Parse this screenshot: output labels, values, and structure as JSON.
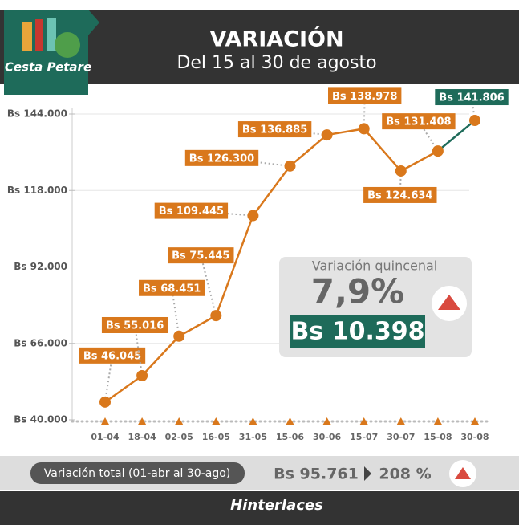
{
  "header": {
    "logo": "Cesta Petare",
    "title": "VARIACIÓN",
    "subtitle": "Del 15 al 30 de agosto"
  },
  "chart_data": {
    "type": "line",
    "categories": [
      "01-04",
      "18-04",
      "02-05",
      "16-05",
      "31-05",
      "15-06",
      "30-06",
      "15-07",
      "30-07",
      "15-08",
      "30-08"
    ],
    "series": [
      {
        "name": "Cesta Petare",
        "color": "#d9781c",
        "highlight_color": "#1e6b5a",
        "values": [
          46045,
          55016,
          68451,
          75445,
          109445,
          126300,
          136885,
          138978,
          124634,
          131408,
          141806
        ],
        "value_labels": [
          "Bs 46.045",
          "Bs 55.016",
          "Bs 68.451",
          "Bs 75.445",
          "Bs 109.445",
          "Bs 126.300",
          "Bs 136.885",
          "Bs 138.978",
          "Bs 124.634",
          "Bs 131.408",
          "Bs 141.806"
        ]
      }
    ],
    "ylim": [
      40000,
      144000
    ],
    "yticks": [
      {
        "value": 40000,
        "label": "Bs 40.000"
      },
      {
        "value": 66000,
        "label": "Bs 66.000"
      },
      {
        "value": 92000,
        "label": "Bs 92.000"
      },
      {
        "value": 118000,
        "label": "Bs 118.000"
      },
      {
        "value": 144000,
        "label": "Bs 144.000"
      }
    ],
    "grid": true
  },
  "summary": {
    "label": "Variación quincenal",
    "percent": "7,9%",
    "amount": "Bs 10.398"
  },
  "total": {
    "label": "Variación total (01-abr al 30-ago)",
    "amount": "Bs 95.761",
    "percent": "208 %"
  },
  "footer": {
    "source": "Hinterlaces"
  }
}
